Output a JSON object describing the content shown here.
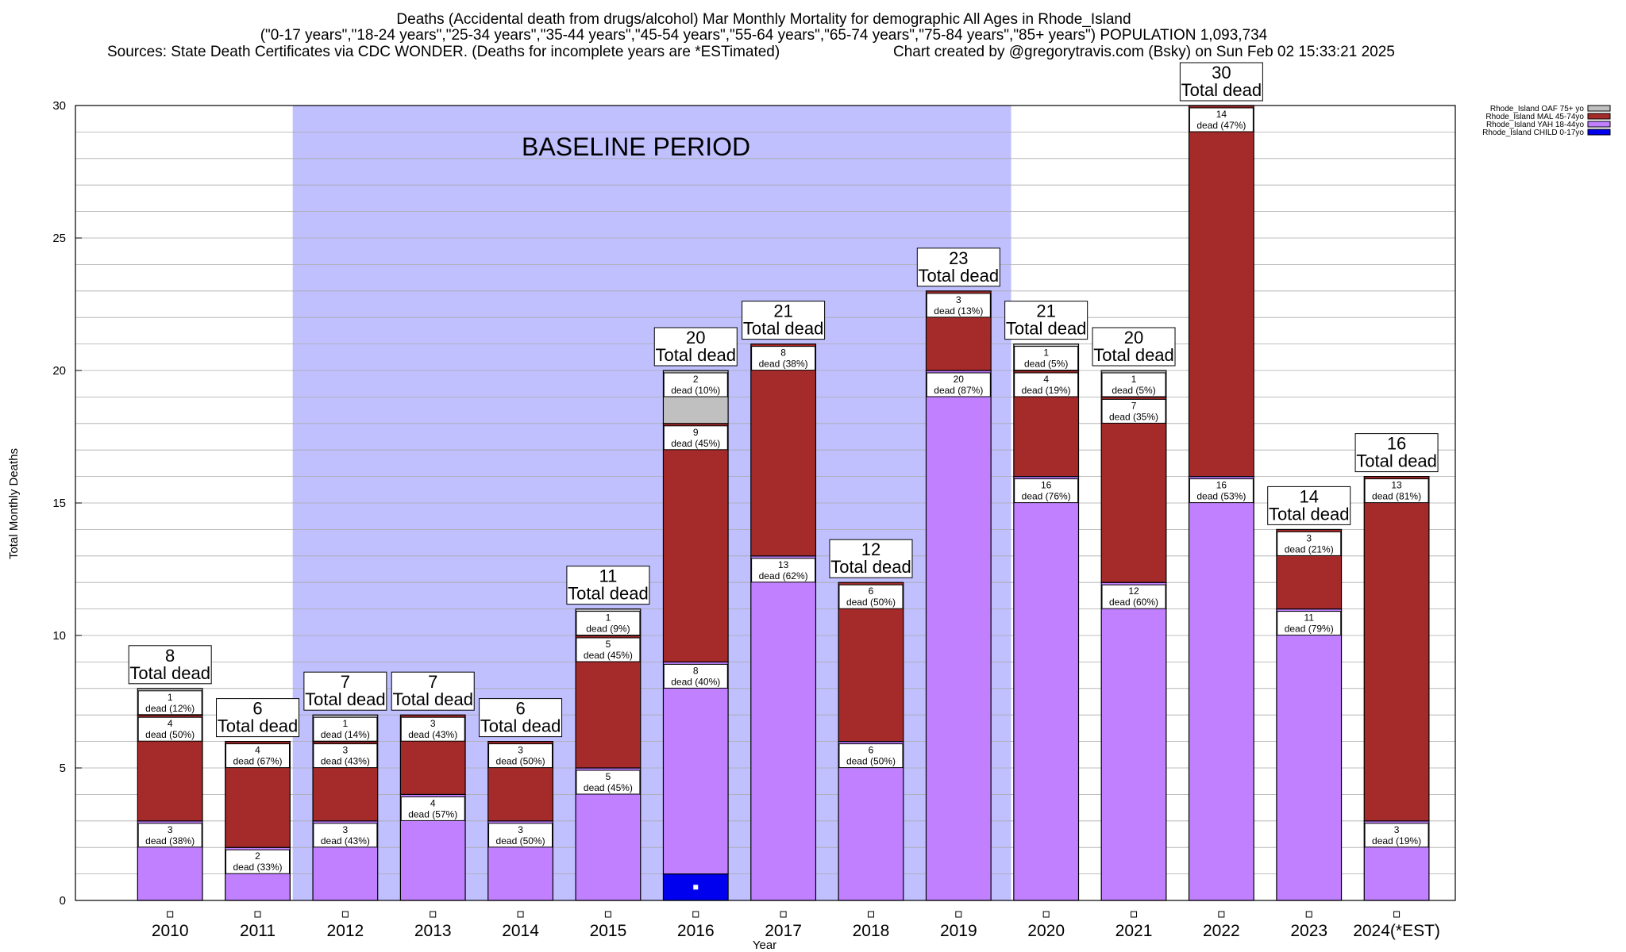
{
  "title": {
    "line1": "Deaths (Accidental death from drugs/alcohol) Mar Monthly Mortality for demographic All Ages in Rhode_Island",
    "line2": "(\"0-17 years\",\"18-24 years\",\"25-34 years\",\"35-44 years\",\"45-54 years\",\"55-64 years\",\"65-74 years\",\"75-84 years\",\"85+ years\") POPULATION 1,093,734",
    "line3_left": "Sources: State Death Certificates via CDC WONDER. (Deaths for incomplete years are *ESTimated)",
    "line3_right": "Chart created by @gregorytravis.com (Bsky) on Sun Feb 02 15:33:21 2025"
  },
  "chart_data": {
    "type": "bar",
    "stacked": true,
    "xlabel": "Year",
    "ylabel": "Total Monthly Deaths",
    "ylim": [
      0,
      30
    ],
    "yticks": [
      0,
      5,
      10,
      15,
      20,
      25,
      30
    ],
    "grid": true,
    "legend_position": "top-right",
    "categories": [
      "2010",
      "2011",
      "2012",
      "2013",
      "2014",
      "2015",
      "2016",
      "2017",
      "2018",
      "2019",
      "2020",
      "2021",
      "2022",
      "2023",
      "2024(*EST)"
    ],
    "series": [
      {
        "name": "Rhode_Island CHILD 0-17yo",
        "color": "#0000ee",
        "values": [
          0,
          0,
          0,
          0,
          0,
          0,
          1,
          0,
          0,
          0,
          0,
          0,
          0,
          0,
          0
        ]
      },
      {
        "name": "Rhode_Island YAH 18-44yo",
        "color": "#c080ff",
        "values": [
          3,
          2,
          3,
          4,
          3,
          5,
          8,
          13,
          6,
          20,
          16,
          12,
          16,
          11,
          3
        ]
      },
      {
        "name": "Rhode_Island MAL 45-74yo",
        "color": "#a52a2a",
        "values": [
          4,
          4,
          3,
          3,
          3,
          5,
          9,
          8,
          6,
          3,
          4,
          7,
          14,
          3,
          13
        ]
      },
      {
        "name": "Rhode_Island OAF 75+ yo",
        "color": "#c0c0c0",
        "values": [
          1,
          0,
          1,
          0,
          0,
          1,
          2,
          0,
          0,
          0,
          1,
          1,
          0,
          0,
          0
        ]
      }
    ],
    "segment_labels": [
      [
        null,
        [
          "3",
          "dead (38%)"
        ],
        [
          "4",
          "dead (50%)"
        ],
        [
          "1",
          "dead (12%)"
        ]
      ],
      [
        null,
        [
          "2",
          "dead (33%)"
        ],
        [
          "4",
          "dead (67%)"
        ],
        null
      ],
      [
        null,
        [
          "3",
          "dead (43%)"
        ],
        [
          "3",
          "dead (43%)"
        ],
        [
          "1",
          "dead (14%)"
        ]
      ],
      [
        null,
        [
          "4",
          "dead (57%)"
        ],
        [
          "3",
          "dead (43%)"
        ],
        null
      ],
      [
        null,
        [
          "3",
          "dead (50%)"
        ],
        [
          "3",
          "dead (50%)"
        ],
        null
      ],
      [
        null,
        [
          "5",
          "dead (45%)"
        ],
        [
          "5",
          "dead (45%)"
        ],
        [
          "1",
          "dead (9%)"
        ]
      ],
      [
        null,
        [
          "8",
          "dead (40%)"
        ],
        [
          "9",
          "dead (45%)"
        ],
        [
          "2",
          "dead (10%)"
        ]
      ],
      [
        null,
        [
          "13",
          "dead (62%)"
        ],
        [
          "8",
          "dead (38%)"
        ],
        null
      ],
      [
        null,
        [
          "6",
          "dead (50%)"
        ],
        [
          "6",
          "dead (50%)"
        ],
        null
      ],
      [
        null,
        [
          "20",
          "dead (87%)"
        ],
        [
          "3",
          "dead (13%)"
        ],
        null
      ],
      [
        null,
        [
          "16",
          "dead (76%)"
        ],
        [
          "4",
          "dead (19%)"
        ],
        [
          "1",
          "dead (5%)"
        ]
      ],
      [
        null,
        [
          "12",
          "dead (60%)"
        ],
        [
          "7",
          "dead (35%)"
        ],
        [
          "1",
          "dead (5%)"
        ]
      ],
      [
        null,
        [
          "16",
          "dead (53%)"
        ],
        [
          "14",
          "dead (47%)"
        ],
        null
      ],
      [
        null,
        [
          "11",
          "dead (79%)"
        ],
        [
          "3",
          "dead (21%)"
        ],
        null
      ],
      [
        null,
        [
          "3",
          "dead (19%)"
        ],
        [
          "13",
          "dead (81%)"
        ],
        null
      ]
    ],
    "totals": [
      "8",
      "6",
      "7",
      "7",
      "6",
      "11",
      "20",
      "21",
      "12",
      "23",
      "21",
      "20",
      "30",
      "14",
      "16"
    ],
    "total_suffix": "Total dead",
    "baseline": {
      "label": "BASELINE PERIOD",
      "from": "2012",
      "to": "2019",
      "color": "#c0c0ff"
    }
  }
}
